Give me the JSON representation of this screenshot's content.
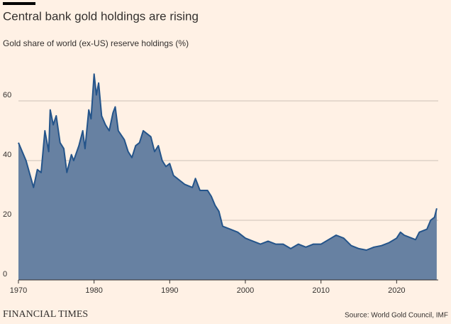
{
  "chart_data": {
    "type": "area",
    "title": "Central bank gold holdings are rising",
    "subtitle": "Gold share of world (ex-US) reserve holdings (%)",
    "source": "Source: World Gold Council, IMF",
    "brand": "FINANCIAL TIMES",
    "x": [
      1970,
      1971,
      1972,
      1972.5,
      1973,
      1973.5,
      1974,
      1974.2,
      1974.6,
      1975,
      1975.5,
      1976,
      1976.4,
      1977,
      1977.3,
      1978,
      1978.5,
      1978.8,
      1979.3,
      1979.6,
      1980,
      1980.3,
      1980.6,
      1981,
      1981.5,
      1982,
      1982.5,
      1982.8,
      1983.2,
      1984,
      1984.5,
      1985,
      1985.5,
      1986,
      1986.5,
      1987,
      1987.5,
      1988,
      1988.5,
      1989,
      1989.5,
      1990,
      1990.5,
      1991,
      1992,
      1993,
      1993.4,
      1994,
      1995,
      1995.5,
      1996,
      1996.5,
      1997,
      1998,
      1999,
      2000,
      2001,
      2002,
      2003,
      2004,
      2005,
      2006,
      2007,
      2008,
      2009,
      2010,
      2011,
      2012,
      2013,
      2014,
      2015,
      2016,
      2017,
      2018,
      2019,
      2020,
      2020.5,
      2021,
      2022,
      2022.5,
      2023,
      2024,
      2024.5,
      2025,
      2025.3
    ],
    "series": [
      {
        "name": "Gold share",
        "color": "#24548a",
        "fill": "#6781a2",
        "values": [
          46,
          40,
          31,
          37,
          36,
          50,
          43,
          57,
          52,
          55,
          46,
          44,
          36,
          42,
          40,
          45,
          50,
          44,
          57,
          54,
          69,
          62,
          66,
          55,
          52,
          50,
          56,
          58,
          50,
          47,
          43,
          41,
          45,
          46,
          50,
          49,
          48,
          43,
          45,
          40,
          38,
          39,
          35,
          34,
          32,
          31,
          34,
          30,
          30,
          28,
          25,
          23,
          18,
          17,
          16,
          14,
          13,
          12,
          13,
          12,
          12,
          10.5,
          12,
          11,
          12,
          12,
          13.5,
          15,
          14,
          11.5,
          10.5,
          10,
          11,
          11.5,
          12.5,
          14,
          16,
          15,
          14,
          13.5,
          16,
          17,
          20,
          21,
          24
        ]
      }
    ],
    "xlim": [
      1970,
      2025.5
    ],
    "ylim": [
      0,
      70
    ],
    "xticks": [
      1970,
      1980,
      1990,
      2000,
      2010,
      2020
    ],
    "yticks": [
      0,
      20,
      40,
      60
    ],
    "grid": true
  }
}
